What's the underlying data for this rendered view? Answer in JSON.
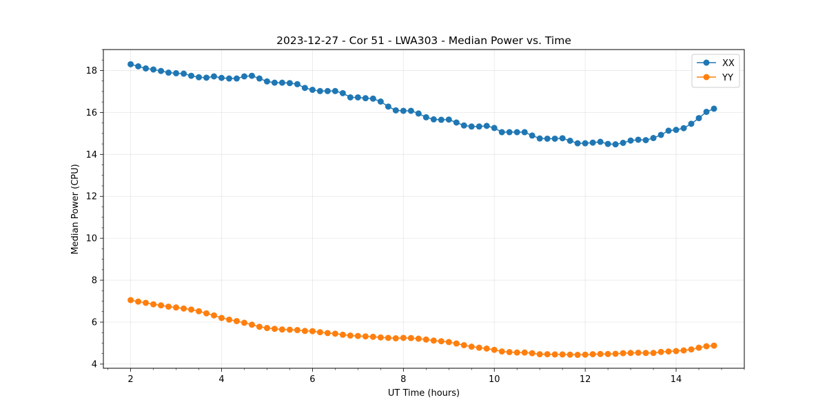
{
  "chart_data": {
    "type": "line",
    "title": "2023-12-27 - Cor 51 - LWA303 - Median Power vs. Time",
    "xlabel": "UT Time (hours)",
    "ylabel": "Median Power (CPU)",
    "xlim": [
      1.4,
      15.5
    ],
    "ylim": [
      3.8,
      19.0
    ],
    "x_ticks": [
      2,
      4,
      6,
      8,
      10,
      12,
      14
    ],
    "y_ticks": [
      4,
      6,
      8,
      10,
      12,
      14,
      16,
      18
    ],
    "grid": true,
    "legend_position": "top-right",
    "series": [
      {
        "name": "XX",
        "color": "#1f77b4",
        "x": [
          2.0,
          2.167,
          2.333,
          2.5,
          2.667,
          2.833,
          3.0,
          3.167,
          3.333,
          3.5,
          3.667,
          3.833,
          4.0,
          4.167,
          4.333,
          4.5,
          4.667,
          4.833,
          5.0,
          5.167,
          5.333,
          5.5,
          5.667,
          5.833,
          6.0,
          6.167,
          6.333,
          6.5,
          6.667,
          6.833,
          7.0,
          7.167,
          7.333,
          7.5,
          7.667,
          7.833,
          8.0,
          8.167,
          8.333,
          8.5,
          8.667,
          8.833,
          9.0,
          9.167,
          9.333,
          9.5,
          9.667,
          9.833,
          10.0,
          10.167,
          10.333,
          10.5,
          10.667,
          10.833,
          11.0,
          11.167,
          11.333,
          11.5,
          11.667,
          11.833,
          12.0,
          12.167,
          12.333,
          12.5,
          12.667,
          12.833,
          13.0,
          13.167,
          13.333,
          13.5,
          13.667,
          13.833,
          14.0,
          14.167,
          14.333,
          14.5,
          14.667,
          14.833
        ],
        "values": [
          18.3,
          18.2,
          18.1,
          18.05,
          17.98,
          17.9,
          17.87,
          17.85,
          17.75,
          17.68,
          17.66,
          17.72,
          17.65,
          17.62,
          17.62,
          17.72,
          17.75,
          17.62,
          17.48,
          17.42,
          17.42,
          17.4,
          17.35,
          17.17,
          17.08,
          17.02,
          17.02,
          17.02,
          16.92,
          16.72,
          16.72,
          16.68,
          16.66,
          16.52,
          16.28,
          16.1,
          16.08,
          16.08,
          15.95,
          15.77,
          15.67,
          15.65,
          15.66,
          15.52,
          15.38,
          15.33,
          15.33,
          15.36,
          15.26,
          15.06,
          15.06,
          15.06,
          15.06,
          14.9,
          14.76,
          14.75,
          14.75,
          14.77,
          14.65,
          14.53,
          14.53,
          14.56,
          14.6,
          14.5,
          14.48,
          14.55,
          14.66,
          14.7,
          14.68,
          14.78,
          14.93,
          15.13,
          15.17,
          15.25,
          15.46,
          15.73,
          16.03,
          16.18
        ]
      },
      {
        "name": "YY",
        "color": "#ff7f0e",
        "x": [
          2.0,
          2.167,
          2.333,
          2.5,
          2.667,
          2.833,
          3.0,
          3.167,
          3.333,
          3.5,
          3.667,
          3.833,
          4.0,
          4.167,
          4.333,
          4.5,
          4.667,
          4.833,
          5.0,
          5.167,
          5.333,
          5.5,
          5.667,
          5.833,
          6.0,
          6.167,
          6.333,
          6.5,
          6.667,
          6.833,
          7.0,
          7.167,
          7.333,
          7.5,
          7.667,
          7.833,
          8.0,
          8.167,
          8.333,
          8.5,
          8.667,
          8.833,
          9.0,
          9.167,
          9.333,
          9.5,
          9.667,
          9.833,
          10.0,
          10.167,
          10.333,
          10.5,
          10.667,
          10.833,
          11.0,
          11.167,
          11.333,
          11.5,
          11.667,
          11.833,
          12.0,
          12.167,
          12.333,
          12.5,
          12.667,
          12.833,
          13.0,
          13.167,
          13.333,
          13.5,
          13.667,
          13.833,
          14.0,
          14.167,
          14.333,
          14.5,
          14.667,
          14.833
        ],
        "values": [
          7.05,
          6.98,
          6.92,
          6.85,
          6.8,
          6.74,
          6.7,
          6.65,
          6.6,
          6.52,
          6.42,
          6.32,
          6.2,
          6.12,
          6.05,
          5.97,
          5.88,
          5.78,
          5.72,
          5.68,
          5.65,
          5.64,
          5.62,
          5.58,
          5.57,
          5.52,
          5.48,
          5.45,
          5.4,
          5.36,
          5.34,
          5.32,
          5.3,
          5.27,
          5.25,
          5.23,
          5.25,
          5.24,
          5.21,
          5.17,
          5.12,
          5.09,
          5.05,
          4.98,
          4.9,
          4.83,
          4.78,
          4.74,
          4.68,
          4.6,
          4.57,
          4.55,
          4.55,
          4.52,
          4.47,
          4.47,
          4.46,
          4.46,
          4.45,
          4.44,
          4.45,
          4.47,
          4.48,
          4.48,
          4.49,
          4.52,
          4.53,
          4.54,
          4.53,
          4.53,
          4.58,
          4.6,
          4.62,
          4.65,
          4.7,
          4.78,
          4.85,
          4.88
        ]
      }
    ]
  }
}
